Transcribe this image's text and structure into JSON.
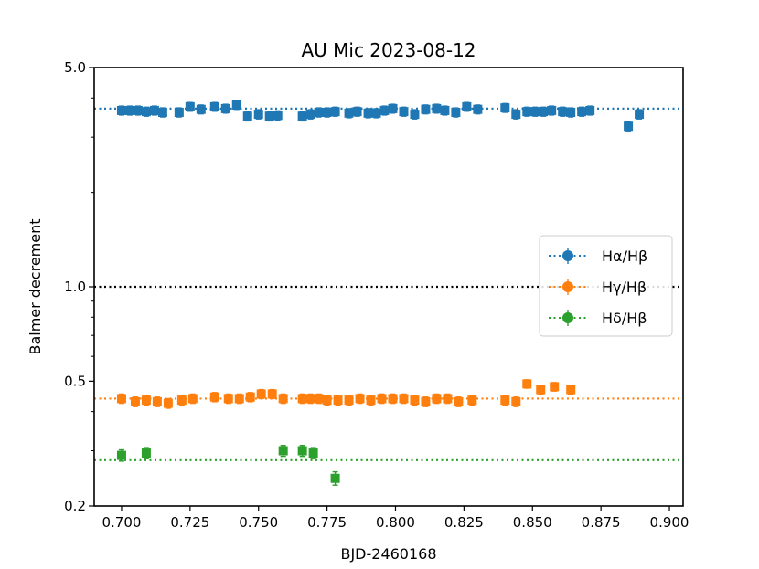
{
  "chart_data": {
    "type": "scatter",
    "title": "AU Mic 2023-08-12",
    "xlabel": "BJD-2460168",
    "ylabel": "Balmer decrement",
    "y_scale": "log",
    "xlim": [
      0.69,
      0.905
    ],
    "ylim": [
      0.2,
      5.0
    ],
    "x_ticks": [
      0.7,
      0.725,
      0.75,
      0.775,
      0.8,
      0.825,
      0.85,
      0.875,
      0.9
    ],
    "x_tick_labels": [
      "0.700",
      "0.725",
      "0.750",
      "0.775",
      "0.800",
      "0.825",
      "0.850",
      "0.875",
      "0.900"
    ],
    "y_ticks": [
      0.2,
      0.5,
      1.0,
      5.0
    ],
    "y_tick_labels": [
      "0.2",
      "0.5",
      "1.0",
      "5.0"
    ],
    "grid": false,
    "legend_position": "center-right",
    "reference_lines": [
      {
        "y": 3.7,
        "color": "#1f77b4",
        "style": "dotted"
      },
      {
        "y": 1.0,
        "color": "#000000",
        "style": "dotted"
      },
      {
        "y": 0.44,
        "color": "#ff7f0e",
        "style": "dotted"
      },
      {
        "y": 0.28,
        "color": "#2ca02c",
        "style": "dotted"
      }
    ],
    "series": [
      {
        "name": "Hα/Hβ",
        "color": "#1f77b4",
        "x": [
          0.7,
          0.703,
          0.706,
          0.709,
          0.712,
          0.715,
          0.721,
          0.725,
          0.729,
          0.734,
          0.738,
          0.742,
          0.746,
          0.75,
          0.754,
          0.757,
          0.766,
          0.769,
          0.772,
          0.775,
          0.778,
          0.783,
          0.786,
          0.79,
          0.793,
          0.796,
          0.799,
          0.803,
          0.807,
          0.811,
          0.815,
          0.818,
          0.822,
          0.826,
          0.83,
          0.84,
          0.844,
          0.848,
          0.851,
          0.854,
          0.857,
          0.861,
          0.864,
          0.868,
          0.871,
          0.885,
          0.889
        ],
        "y": [
          3.65,
          3.65,
          3.65,
          3.62,
          3.65,
          3.6,
          3.6,
          3.75,
          3.68,
          3.75,
          3.7,
          3.8,
          3.5,
          3.55,
          3.5,
          3.52,
          3.5,
          3.55,
          3.6,
          3.6,
          3.62,
          3.58,
          3.62,
          3.58,
          3.58,
          3.65,
          3.7,
          3.62,
          3.55,
          3.68,
          3.7,
          3.65,
          3.6,
          3.75,
          3.68,
          3.72,
          3.55,
          3.62,
          3.62,
          3.62,
          3.65,
          3.62,
          3.6,
          3.62,
          3.65,
          3.25,
          3.55
        ],
        "err": 0.12
      },
      {
        "name": "Hγ/Hβ",
        "color": "#ff7f0e",
        "x": [
          0.7,
          0.705,
          0.709,
          0.713,
          0.717,
          0.722,
          0.726,
          0.734,
          0.739,
          0.743,
          0.747,
          0.751,
          0.755,
          0.759,
          0.766,
          0.769,
          0.772,
          0.775,
          0.779,
          0.783,
          0.787,
          0.791,
          0.795,
          0.799,
          0.803,
          0.807,
          0.811,
          0.815,
          0.819,
          0.823,
          0.828,
          0.84,
          0.844,
          0.848,
          0.853,
          0.858,
          0.864
        ],
        "y": [
          0.44,
          0.43,
          0.435,
          0.43,
          0.425,
          0.435,
          0.44,
          0.445,
          0.44,
          0.44,
          0.445,
          0.455,
          0.455,
          0.44,
          0.44,
          0.44,
          0.44,
          0.435,
          0.435,
          0.435,
          0.44,
          0.435,
          0.44,
          0.44,
          0.44,
          0.435,
          0.43,
          0.44,
          0.44,
          0.43,
          0.435,
          0.435,
          0.43,
          0.49,
          0.47,
          0.48,
          0.47
        ],
        "err": 0.015
      },
      {
        "name": "Hδ/Hβ",
        "color": "#2ca02c",
        "x": [
          0.7,
          0.709,
          0.759,
          0.766,
          0.77,
          0.778
        ],
        "y": [
          0.29,
          0.295,
          0.3,
          0.3,
          0.295,
          0.245
        ],
        "err": 0.012
      }
    ]
  }
}
